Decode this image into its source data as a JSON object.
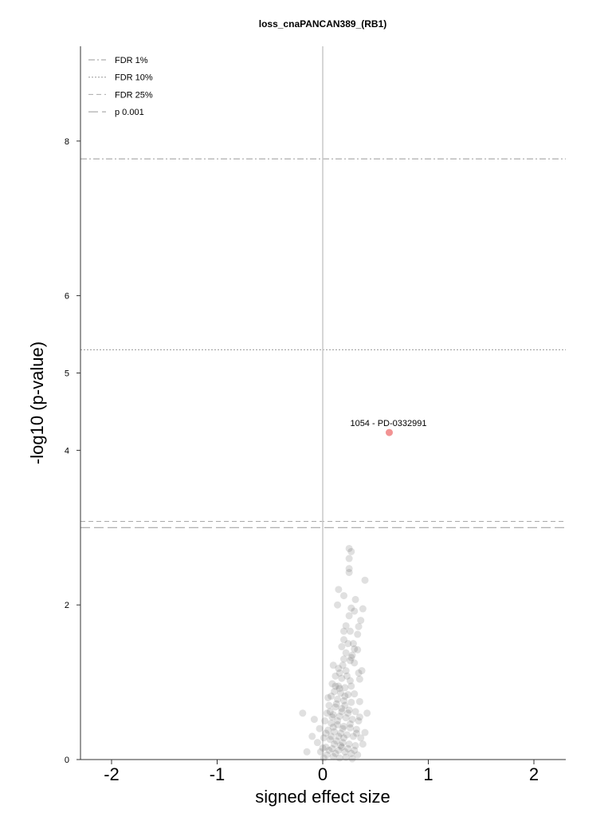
{
  "chart_data": {
    "type": "scatter",
    "title": "loss_cnaPANCAN389_(RB1)",
    "xlabel": "signed effect size",
    "ylabel": "-log10 (p-value)",
    "xlim": [
      -2.0,
      2.3
    ],
    "ylim": [
      0,
      9.2
    ],
    "x_ticks": [
      -2,
      -1,
      0,
      1,
      2
    ],
    "x_tick_labels": [
      "-2",
      "-1",
      "0",
      "1",
      "2"
    ],
    "y_ticks": [
      0,
      2,
      4,
      5,
      6,
      8
    ],
    "y_tick_labels": [
      "0",
      "2",
      "4",
      "5",
      "6",
      "8"
    ],
    "grid": false,
    "legend_position": "top-left",
    "thresholds": [
      {
        "label": "FDR 1%",
        "y": 7.77,
        "style": "dashdot",
        "color": "#999999"
      },
      {
        "label": "FDR 10%",
        "y": 5.3,
        "style": "dotted",
        "color": "#999999"
      },
      {
        "label": "FDR 25%",
        "y": 3.08,
        "style": "dashed-short",
        "color": "#aaaaaa"
      },
      {
        "label": "p 0.001",
        "y": 3.0,
        "style": "dashed-long",
        "color": "#999999"
      }
    ],
    "highlight": {
      "label": "1054 - PD-0332991",
      "x": 0.63,
      "y": 4.23,
      "color": "#f08080"
    },
    "background_point_color": "#555555",
    "background_points": [
      [
        0.25,
        2.73
      ],
      [
        0.27,
        2.69
      ],
      [
        0.25,
        2.6
      ],
      [
        0.25,
        2.47
      ],
      [
        0.4,
        2.32
      ],
      [
        0.25,
        2.42
      ],
      [
        0.15,
        2.2
      ],
      [
        0.2,
        2.12
      ],
      [
        0.31,
        2.07
      ],
      [
        0.14,
        2.0
      ],
      [
        0.27,
        1.96
      ],
      [
        0.38,
        1.95
      ],
      [
        0.3,
        1.92
      ],
      [
        0.25,
        1.86
      ],
      [
        0.36,
        1.8
      ],
      [
        0.22,
        1.73
      ],
      [
        0.34,
        1.72
      ],
      [
        0.2,
        1.66
      ],
      [
        0.26,
        1.66
      ],
      [
        0.33,
        1.62
      ],
      [
        0.2,
        1.55
      ],
      [
        0.24,
        1.5
      ],
      [
        0.18,
        1.46
      ],
      [
        0.3,
        1.43
      ],
      [
        0.22,
        1.38
      ],
      [
        0.28,
        1.35
      ],
      [
        0.2,
        1.3
      ],
      [
        0.26,
        1.28
      ],
      [
        0.3,
        1.25
      ],
      [
        0.1,
        1.22
      ],
      [
        0.15,
        1.18
      ],
      [
        0.22,
        1.15
      ],
      [
        0.34,
        1.12
      ],
      [
        0.12,
        1.08
      ],
      [
        0.18,
        1.05
      ],
      [
        0.26,
        1.02
      ],
      [
        0.09,
        0.98
      ],
      [
        0.15,
        0.95
      ],
      [
        0.21,
        0.93
      ],
      [
        0.35,
        1.04
      ],
      [
        0.11,
        0.88
      ],
      [
        0.17,
        0.86
      ],
      [
        0.24,
        0.84
      ],
      [
        0.08,
        0.82
      ],
      [
        0.14,
        0.78
      ],
      [
        0.2,
        0.76
      ],
      [
        0.27,
        0.74
      ],
      [
        0.06,
        0.7
      ],
      [
        0.12,
        0.68
      ],
      [
        0.18,
        0.66
      ],
      [
        0.25,
        0.64
      ],
      [
        0.31,
        0.62
      ],
      [
        0.04,
        0.6
      ],
      [
        0.1,
        0.58
      ],
      [
        0.16,
        0.56
      ],
      [
        0.22,
        0.54
      ],
      [
        0.28,
        0.52
      ],
      [
        0.34,
        0.5
      ],
      [
        -0.19,
        0.6
      ],
      [
        -0.08,
        0.52
      ],
      [
        0.02,
        0.5
      ],
      [
        0.08,
        0.47
      ],
      [
        0.14,
        0.45
      ],
      [
        0.2,
        0.43
      ],
      [
        0.26,
        0.41
      ],
      [
        0.32,
        0.39
      ],
      [
        -0.03,
        0.4
      ],
      [
        0.05,
        0.38
      ],
      [
        0.11,
        0.36
      ],
      [
        0.17,
        0.34
      ],
      [
        0.23,
        0.32
      ],
      [
        0.29,
        0.3
      ],
      [
        0.36,
        0.28
      ],
      [
        -0.1,
        0.3
      ],
      [
        0.01,
        0.28
      ],
      [
        0.07,
        0.26
      ],
      [
        0.13,
        0.24
      ],
      [
        0.19,
        0.22
      ],
      [
        0.25,
        0.2
      ],
      [
        0.31,
        0.18
      ],
      [
        0.38,
        0.2
      ],
      [
        -0.05,
        0.22
      ],
      [
        0.03,
        0.16
      ],
      [
        0.09,
        0.14
      ],
      [
        0.15,
        0.12
      ],
      [
        0.21,
        0.1
      ],
      [
        0.27,
        0.08
      ],
      [
        0.33,
        0.06
      ],
      [
        -0.15,
        0.1
      ],
      [
        -0.02,
        0.1
      ],
      [
        0.04,
        0.06
      ],
      [
        0.1,
        0.04
      ],
      [
        0.16,
        0.02
      ],
      [
        0.22,
        0.03
      ],
      [
        0.28,
        0.01
      ],
      [
        0.01,
        0.02
      ],
      [
        0.06,
        0.12
      ],
      [
        0.12,
        0.08
      ],
      [
        0.18,
        0.16
      ],
      [
        0.24,
        0.14
      ],
      [
        0.3,
        0.12
      ],
      [
        0.08,
        0.3
      ],
      [
        0.14,
        0.5
      ],
      [
        0.18,
        0.62
      ],
      [
        0.13,
        0.72
      ],
      [
        0.21,
        0.82
      ],
      [
        0.16,
        0.92
      ],
      [
        0.23,
        1.08
      ],
      [
        0.19,
        1.22
      ],
      [
        0.27,
        1.32
      ],
      [
        0.29,
        1.5
      ],
      [
        0.33,
        1.42
      ],
      [
        0.07,
        0.62
      ],
      [
        0.05,
        0.8
      ],
      [
        0.1,
        0.42
      ],
      [
        0.2,
        0.28
      ],
      [
        0.26,
        0.46
      ],
      [
        0.32,
        0.34
      ],
      [
        0.03,
        0.34
      ],
      [
        0.17,
        0.18
      ],
      [
        0.42,
        0.6
      ],
      [
        0.3,
        0.85
      ],
      [
        0.35,
        0.75
      ],
      [
        0.37,
        1.15
      ],
      [
        0.0,
        0.15
      ],
      [
        0.11,
        0.2
      ],
      [
        0.24,
        0.6
      ],
      [
        0.19,
        0.4
      ],
      [
        0.15,
        0.3
      ],
      [
        0.09,
        0.55
      ],
      [
        0.21,
        0.7
      ],
      [
        0.27,
        0.95
      ],
      [
        0.35,
        0.55
      ],
      [
        0.4,
        0.35
      ],
      [
        0.12,
        0.95
      ],
      [
        0.16,
        1.12
      ]
    ]
  }
}
